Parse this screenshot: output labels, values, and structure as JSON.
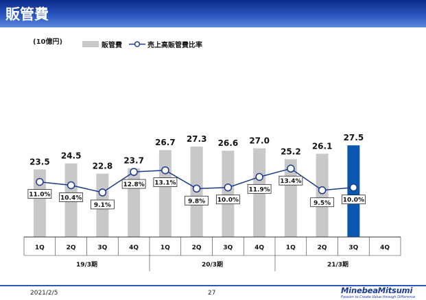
{
  "header": {
    "title": "販管費"
  },
  "footer": {
    "date": "2021/2/5",
    "page_number": "27",
    "brand_name": "MinebeaMitsumi",
    "brand_tagline": "Passion to Create Value through Difference"
  },
  "colors": {
    "bar": "#c8c8c8",
    "highlight_bar": "#0a56b0",
    "line": "#1a3a8a",
    "title_bar": "#1a44b0"
  },
  "chart_data": {
    "type": "bar",
    "title": "",
    "unit": "(10億円)",
    "categories": [
      "1Q",
      "2Q",
      "3Q",
      "4Q",
      "1Q",
      "2Q",
      "3Q",
      "4Q",
      "1Q",
      "2Q",
      "3Q",
      "4Q"
    ],
    "groups": [
      {
        "label": "19/3期",
        "count": 4
      },
      {
        "label": "20/3期",
        "count": 4
      },
      {
        "label": "21/3期",
        "count": 4
      }
    ],
    "series": [
      {
        "name": "販管費",
        "type": "bar",
        "values": [
          23.5,
          24.5,
          22.8,
          23.7,
          26.7,
          27.3,
          26.6,
          27.0,
          25.2,
          26.1,
          27.5,
          null
        ],
        "labels": [
          "23.5",
          "24.5",
          "22.8",
          "23.7",
          "26.7",
          "27.3",
          "26.6",
          "27.0",
          "25.2",
          "26.1",
          "27.5",
          ""
        ],
        "highlight_index": 10
      },
      {
        "name": "売上高販管費比率",
        "type": "line",
        "values": [
          11.0,
          10.4,
          9.1,
          12.8,
          13.1,
          9.8,
          10.0,
          11.9,
          13.4,
          9.5,
          10.0,
          null
        ],
        "labels": [
          "11.0%",
          "10.4%",
          "9.1%",
          "12.8%",
          "13.1%",
          "9.8%",
          "10.0%",
          "11.9%",
          "13.4%",
          "9.5%",
          "10.0%",
          ""
        ]
      }
    ],
    "legend_position": "top",
    "grid": false
  }
}
